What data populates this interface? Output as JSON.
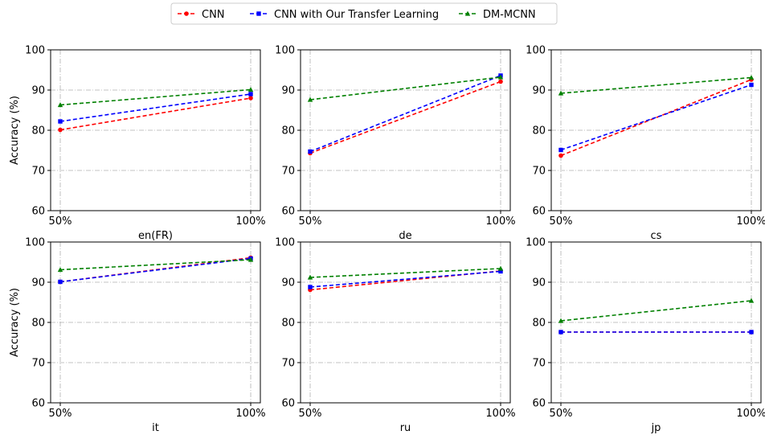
{
  "legend": [
    {
      "label": "CNN",
      "color": "#ff0000",
      "marker": "circle"
    },
    {
      "label": "CNN with Our Transfer Learning",
      "color": "#0000ff",
      "marker": "square"
    },
    {
      "label": "DM-MCNN",
      "color": "#008000",
      "marker": "triangle"
    }
  ],
  "chart_data": [
    {
      "type": "line",
      "xlabel": "en(FR)",
      "ylabel": "Accuracy (%)",
      "categories": [
        "50%",
        "100%"
      ],
      "ylim": [
        60,
        100
      ],
      "yticks": [
        60,
        70,
        80,
        90,
        100
      ],
      "grid": true,
      "series": [
        {
          "name": "CNN",
          "values": [
            80.1,
            88.0
          ]
        },
        {
          "name": "CNN with Our Transfer Learning",
          "values": [
            82.2,
            89.0
          ]
        },
        {
          "name": "DM-MCNN",
          "values": [
            86.3,
            90.1
          ]
        }
      ]
    },
    {
      "type": "line",
      "xlabel": "de",
      "ylabel": "",
      "categories": [
        "50%",
        "100%"
      ],
      "ylim": [
        60,
        100
      ],
      "yticks": [
        60,
        70,
        80,
        90,
        100
      ],
      "grid": true,
      "series": [
        {
          "name": "CNN",
          "values": [
            74.3,
            92.1
          ]
        },
        {
          "name": "CNN with Our Transfer Learning",
          "values": [
            74.7,
            93.6
          ]
        },
        {
          "name": "DM-MCNN",
          "values": [
            87.6,
            93.2
          ]
        }
      ]
    },
    {
      "type": "line",
      "xlabel": "cs",
      "ylabel": "",
      "categories": [
        "50%",
        "100%"
      ],
      "ylim": [
        60,
        100
      ],
      "yticks": [
        60,
        70,
        80,
        90,
        100
      ],
      "grid": true,
      "series": [
        {
          "name": "CNN",
          "values": [
            73.7,
            92.6
          ]
        },
        {
          "name": "CNN with Our Transfer Learning",
          "values": [
            75.1,
            91.3
          ]
        },
        {
          "name": "DM-MCNN",
          "values": [
            89.2,
            93.1
          ]
        }
      ]
    },
    {
      "type": "line",
      "xlabel": "it",
      "ylabel": "Accuracy (%)",
      "categories": [
        "50%",
        "100%"
      ],
      "ylim": [
        60,
        100
      ],
      "yticks": [
        60,
        70,
        80,
        90,
        100
      ],
      "grid": true,
      "series": [
        {
          "name": "CNN",
          "values": [
            90.1,
            96.1
          ]
        },
        {
          "name": "CNN with Our Transfer Learning",
          "values": [
            90.1,
            95.9
          ]
        },
        {
          "name": "DM-MCNN",
          "values": [
            93.1,
            95.6
          ]
        }
      ]
    },
    {
      "type": "line",
      "xlabel": "ru",
      "ylabel": "",
      "categories": [
        "50%",
        "100%"
      ],
      "ylim": [
        60,
        100
      ],
      "yticks": [
        60,
        70,
        80,
        90,
        100
      ],
      "grid": true,
      "series": [
        {
          "name": "CNN",
          "values": [
            88.1,
            92.8
          ]
        },
        {
          "name": "CNN with Our Transfer Learning",
          "values": [
            88.8,
            92.7
          ]
        },
        {
          "name": "DM-MCNN",
          "values": [
            91.2,
            93.4
          ]
        }
      ]
    },
    {
      "type": "line",
      "xlabel": "jp",
      "ylabel": "",
      "categories": [
        "50%",
        "100%"
      ],
      "ylim": [
        60,
        100
      ],
      "yticks": [
        60,
        70,
        80,
        90,
        100
      ],
      "grid": true,
      "series": [
        {
          "name": "CNN",
          "values": [
            77.6,
            77.6
          ]
        },
        {
          "name": "CNN with Our Transfer Learning",
          "values": [
            77.6,
            77.6
          ]
        },
        {
          "name": "DM-MCNN",
          "values": [
            80.4,
            85.4
          ]
        }
      ]
    }
  ]
}
